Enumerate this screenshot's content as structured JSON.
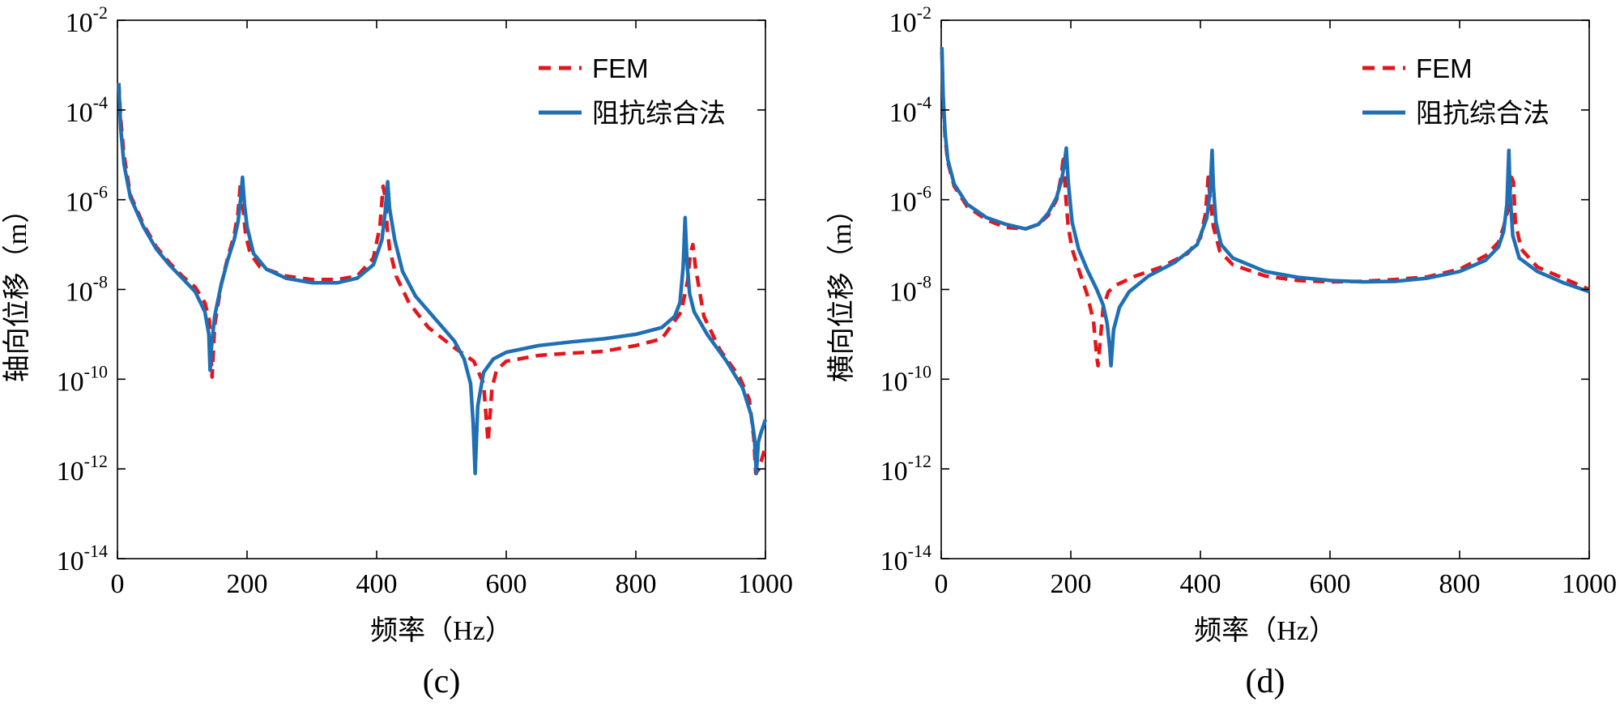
{
  "chart_data": [
    {
      "id": "c",
      "type": "line",
      "y_scale": "log",
      "xlim": [
        0,
        1000
      ],
      "ylim_exponents": [
        -14,
        -2
      ],
      "xticks": [
        0,
        200,
        400,
        600,
        800,
        1000
      ],
      "yticks": [
        {
          "base": "10",
          "exp": "-2"
        },
        {
          "base": "10",
          "exp": "-4"
        },
        {
          "base": "10",
          "exp": "-6"
        },
        {
          "base": "10",
          "exp": "-8"
        },
        {
          "base": "10",
          "exp": "-10"
        },
        {
          "base": "10",
          "exp": "-12"
        },
        {
          "base": "10",
          "exp": "-14"
        }
      ],
      "xlabel": "频率（Hz）",
      "ylabel": "轴向位移（m）",
      "panel_label": "(c)",
      "legend": {
        "position": "top-right",
        "entries": [
          "FEM",
          "阻抗综合法"
        ]
      },
      "series": [
        {
          "name": "FEM",
          "color": "#e3171b",
          "style": "dashed",
          "x": [
            2,
            5,
            10,
            20,
            40,
            60,
            80,
            100,
            120,
            135,
            142,
            146,
            150,
            160,
            170,
            180,
            186,
            190,
            194,
            198,
            205,
            220,
            260,
            300,
            340,
            370,
            395,
            405,
            410,
            414,
            416,
            420,
            430,
            450,
            480,
            520,
            550,
            565,
            572,
            578,
            585,
            600,
            650,
            700,
            750,
            800,
            840,
            870,
            880,
            884,
            888,
            892,
            905,
            930,
            960,
            975,
            982,
            985,
            990,
            1000
          ],
          "y_log10": [
            -3.4,
            -4.2,
            -5.0,
            -5.9,
            -6.55,
            -7.05,
            -7.4,
            -7.7,
            -7.95,
            -8.3,
            -8.7,
            -9.95,
            -8.8,
            -7.9,
            -7.3,
            -6.8,
            -6.3,
            -5.6,
            -6.2,
            -6.8,
            -7.2,
            -7.5,
            -7.7,
            -7.78,
            -7.78,
            -7.7,
            -7.3,
            -6.6,
            -5.7,
            -6.0,
            -6.6,
            -7.1,
            -7.7,
            -8.3,
            -8.85,
            -9.3,
            -9.6,
            -10.1,
            -11.4,
            -10.2,
            -9.8,
            -9.6,
            -9.47,
            -9.42,
            -9.38,
            -9.25,
            -9.1,
            -8.5,
            -7.8,
            -7.2,
            -7.0,
            -7.5,
            -8.6,
            -9.35,
            -9.95,
            -10.45,
            -11.3,
            -12.1,
            -12.0,
            -11.5
          ]
        },
        {
          "name": "阻抗综合法",
          "color": "#1f6fb4",
          "style": "solid",
          "x": [
            2,
            5,
            10,
            20,
            40,
            60,
            80,
            100,
            120,
            135,
            141,
            143,
            145,
            150,
            160,
            170,
            180,
            186,
            190,
            193,
            196,
            200,
            210,
            230,
            260,
            300,
            340,
            370,
            395,
            408,
            413,
            417,
            420,
            428,
            440,
            460,
            490,
            520,
            535,
            545,
            549,
            552,
            556,
            565,
            580,
            600,
            650,
            700,
            750,
            800,
            840,
            860,
            868,
            873,
            876,
            879,
            883,
            890,
            910,
            940,
            965,
            978,
            983,
            986,
            989,
            993,
            1000
          ],
          "y_log10": [
            -3.4,
            -4.4,
            -5.2,
            -5.95,
            -6.6,
            -7.1,
            -7.45,
            -7.75,
            -8.05,
            -8.5,
            -9.0,
            -9.8,
            -9.3,
            -8.6,
            -7.9,
            -7.35,
            -6.9,
            -6.5,
            -6.0,
            -5.5,
            -6.1,
            -6.6,
            -7.2,
            -7.55,
            -7.75,
            -7.85,
            -7.85,
            -7.75,
            -7.45,
            -6.9,
            -6.3,
            -5.6,
            -6.2,
            -6.9,
            -7.6,
            -8.15,
            -8.65,
            -9.15,
            -9.55,
            -10.1,
            -11.0,
            -12.1,
            -10.6,
            -9.85,
            -9.55,
            -9.4,
            -9.25,
            -9.17,
            -9.1,
            -9.0,
            -8.85,
            -8.6,
            -8.3,
            -7.5,
            -6.4,
            -7.4,
            -8.1,
            -8.5,
            -9.0,
            -9.6,
            -10.2,
            -10.8,
            -11.3,
            -12.1,
            -11.4,
            -11.2,
            -10.9
          ]
        }
      ]
    },
    {
      "id": "d",
      "type": "line",
      "y_scale": "log",
      "xlim": [
        0,
        1000
      ],
      "ylim_exponents": [
        -14,
        -2
      ],
      "xticks": [
        0,
        200,
        400,
        600,
        800,
        1000
      ],
      "yticks": [
        {
          "base": "10",
          "exp": "-2"
        },
        {
          "base": "10",
          "exp": "-4"
        },
        {
          "base": "10",
          "exp": "-6"
        },
        {
          "base": "10",
          "exp": "-8"
        },
        {
          "base": "10",
          "exp": "-10"
        },
        {
          "base": "10",
          "exp": "-12"
        },
        {
          "base": "10",
          "exp": "-14"
        }
      ],
      "xlabel": "频率（Hz）",
      "ylabel": "横向位移（m）",
      "panel_label": "(d)",
      "legend": {
        "position": "top-right",
        "entries": [
          "FEM",
          "阻抗综合法"
        ]
      },
      "series": [
        {
          "name": "FEM",
          "color": "#e3171b",
          "style": "dashed",
          "x": [
            1,
            3,
            6,
            10,
            20,
            40,
            70,
            100,
            130,
            150,
            165,
            178,
            185,
            189,
            192,
            196,
            202,
            212,
            225,
            235,
            240,
            242,
            245,
            250,
            258,
            270,
            300,
            340,
            380,
            400,
            408,
            412,
            415,
            420,
            430,
            450,
            500,
            550,
            600,
            650,
            700,
            750,
            800,
            840,
            860,
            868,
            875,
            880,
            883,
            886,
            895,
            920,
            960,
            1000
          ],
          "y_log10": [
            -2.7,
            -3.8,
            -4.6,
            -5.15,
            -5.7,
            -6.15,
            -6.45,
            -6.62,
            -6.65,
            -6.55,
            -6.35,
            -6.0,
            -5.5,
            -5.0,
            -5.9,
            -6.6,
            -7.1,
            -7.55,
            -8.1,
            -8.7,
            -9.5,
            -9.7,
            -9.2,
            -8.4,
            -8.05,
            -7.9,
            -7.7,
            -7.5,
            -7.2,
            -6.85,
            -6.3,
            -5.5,
            -5.95,
            -6.6,
            -7.15,
            -7.45,
            -7.7,
            -7.8,
            -7.83,
            -7.82,
            -7.78,
            -7.72,
            -7.55,
            -7.25,
            -6.95,
            -6.6,
            -6.2,
            -5.5,
            -5.6,
            -6.5,
            -7.1,
            -7.5,
            -7.75,
            -8.0
          ]
        },
        {
          "name": "阻抗综合法",
          "color": "#1f6fb4",
          "style": "solid",
          "x": [
            1,
            3,
            6,
            10,
            20,
            40,
            70,
            100,
            130,
            150,
            165,
            178,
            186,
            190,
            193,
            196,
            202,
            212,
            225,
            240,
            250,
            256,
            260,
            262,
            266,
            275,
            290,
            320,
            360,
            395,
            410,
            415,
            418,
            420,
            424,
            432,
            450,
            500,
            550,
            600,
            650,
            700,
            750,
            800,
            840,
            860,
            868,
            873,
            876,
            878,
            882,
            892,
            920,
            960,
            1000
          ],
          "y_log10": [
            -2.6,
            -3.7,
            -4.5,
            -5.1,
            -5.65,
            -6.1,
            -6.4,
            -6.55,
            -6.65,
            -6.55,
            -6.3,
            -5.95,
            -5.55,
            -5.2,
            -4.85,
            -5.6,
            -6.5,
            -7.1,
            -7.55,
            -8.0,
            -8.35,
            -8.75,
            -9.3,
            -9.7,
            -8.9,
            -8.4,
            -8.05,
            -7.7,
            -7.4,
            -7.0,
            -6.4,
            -5.8,
            -4.9,
            -5.7,
            -6.5,
            -7.0,
            -7.3,
            -7.6,
            -7.73,
            -7.8,
            -7.83,
            -7.82,
            -7.75,
            -7.6,
            -7.35,
            -7.05,
            -6.7,
            -6.1,
            -4.9,
            -5.9,
            -6.8,
            -7.3,
            -7.6,
            -7.85,
            -8.05
          ]
        }
      ]
    }
  ]
}
